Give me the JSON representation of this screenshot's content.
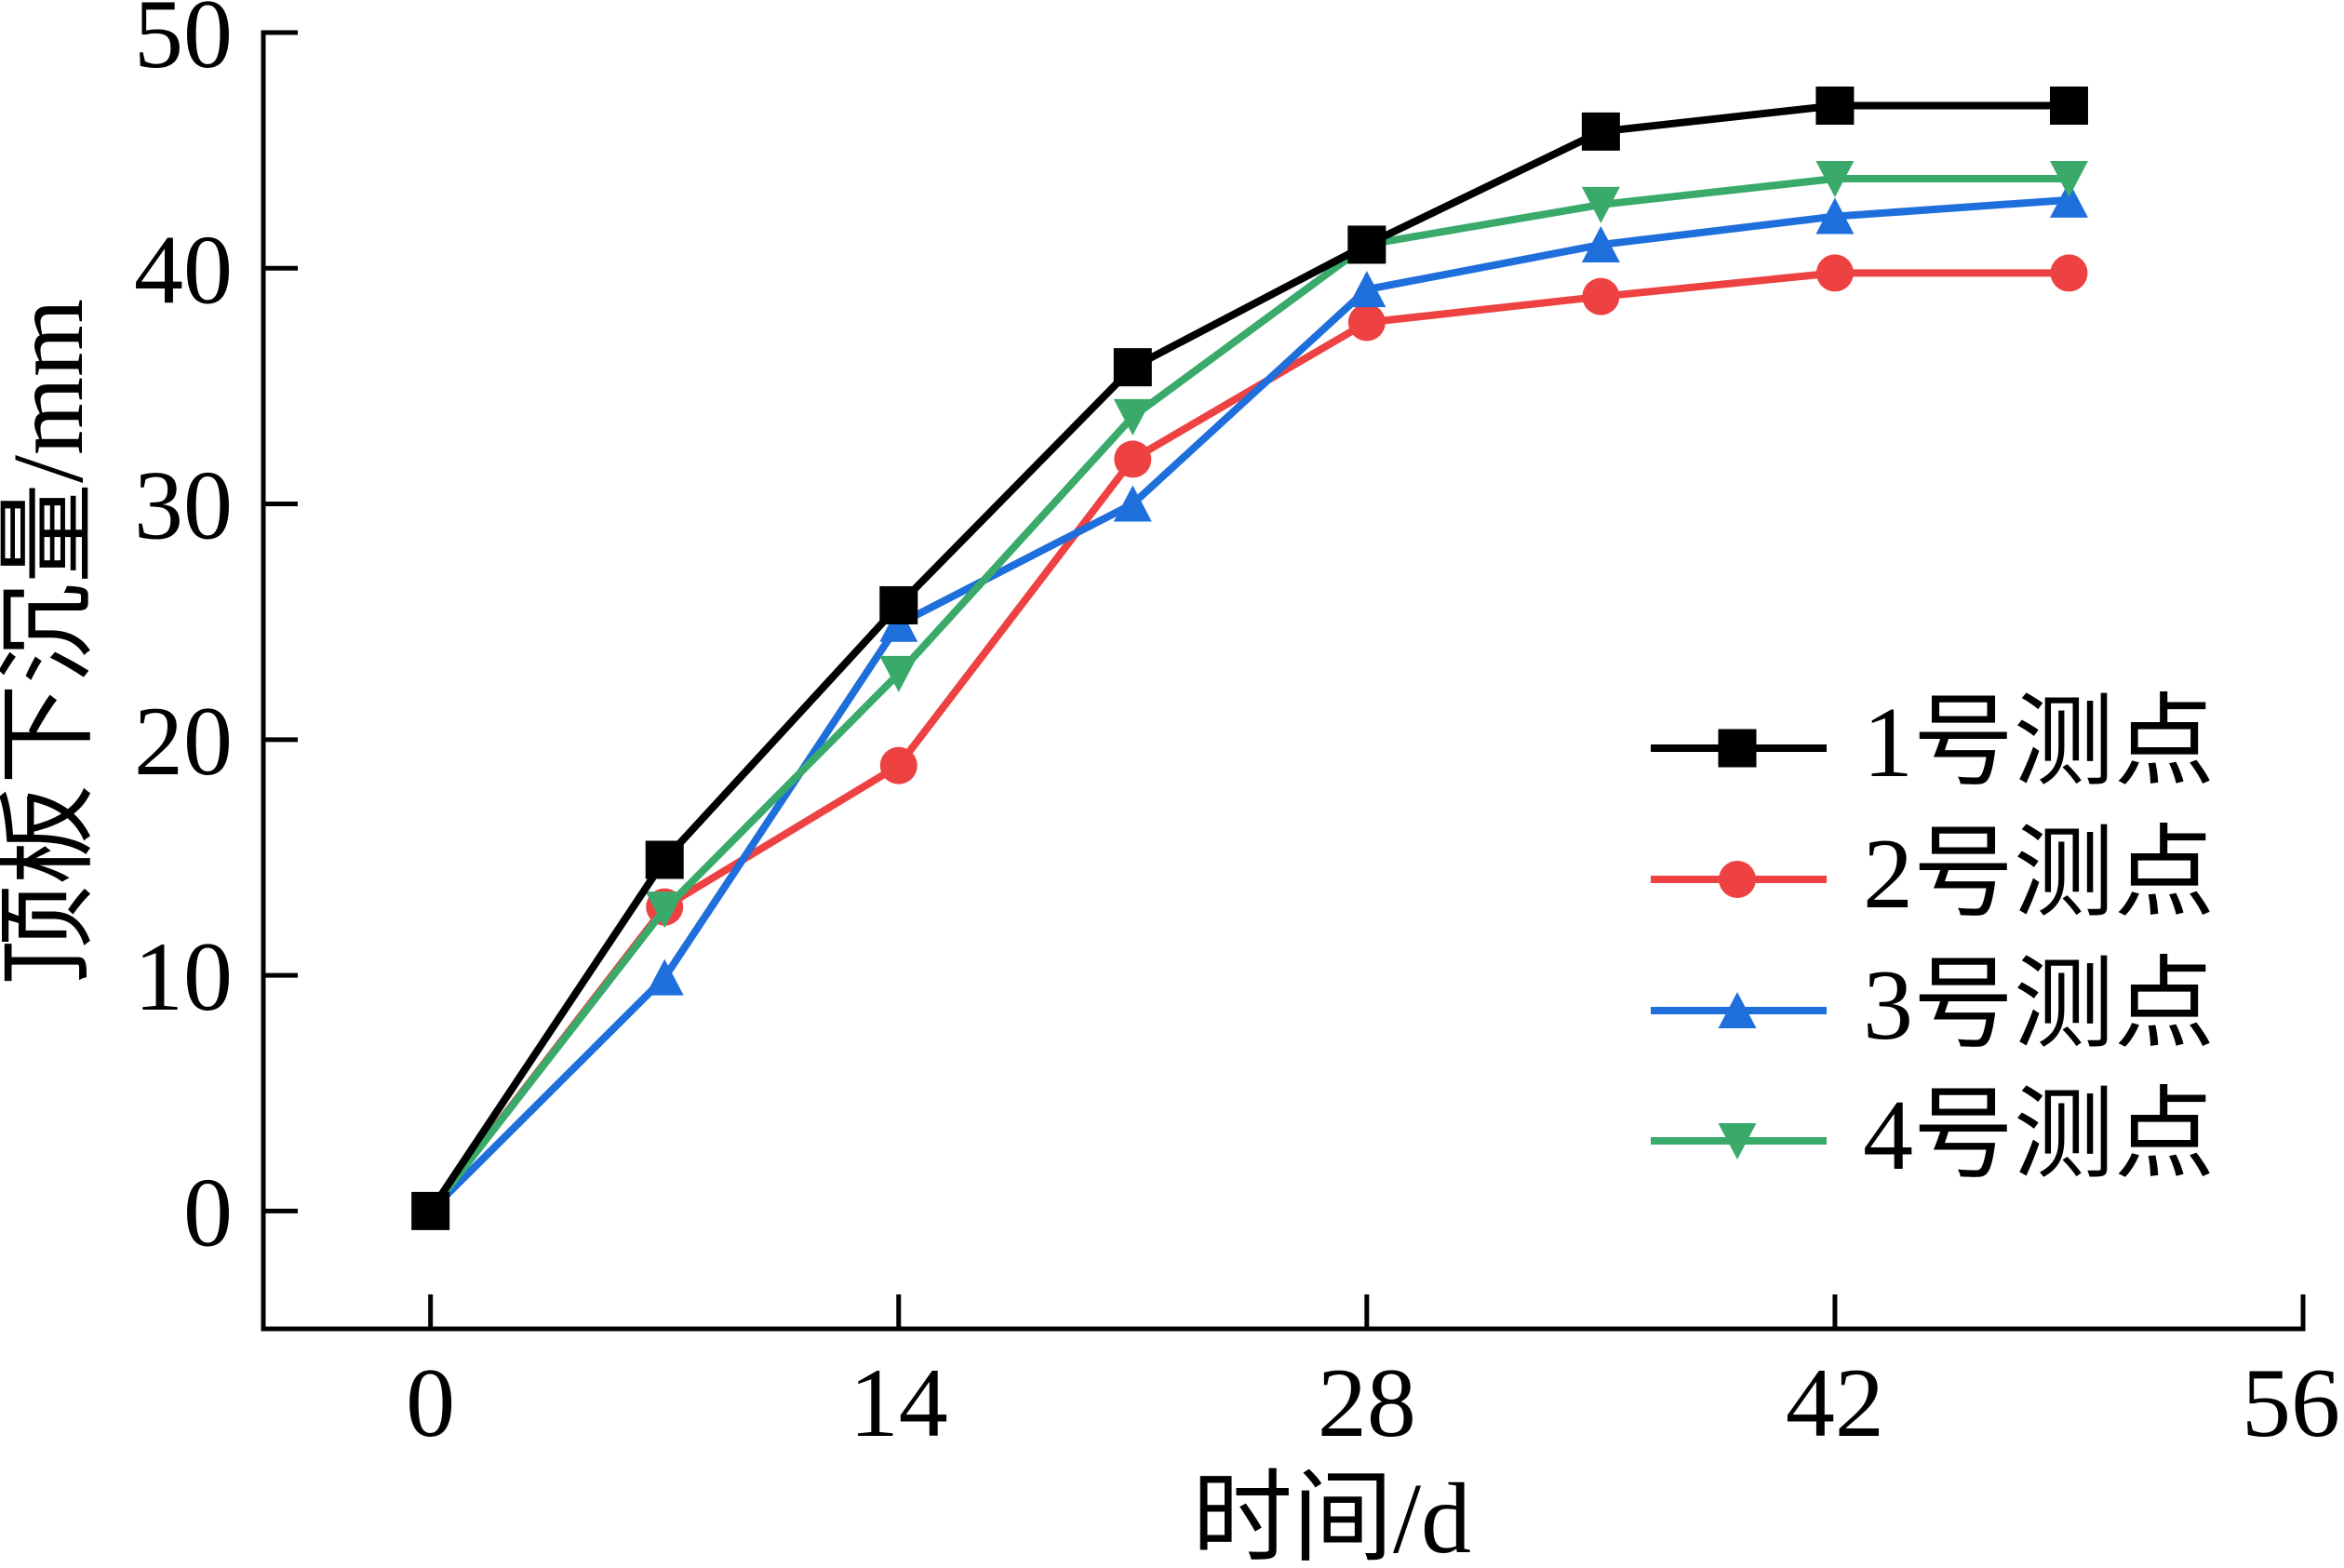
{
  "chart_data": {
    "type": "line",
    "title": "",
    "xlabel": "时间/d",
    "ylabel": "顶板下沉量/mm",
    "xlim": [
      -5,
      56
    ],
    "ylim": [
      -5,
      50
    ],
    "xticks": [
      0,
      14,
      28,
      42,
      56
    ],
    "xtick_labels": [
      "0",
      "14",
      "28",
      "42",
      "56"
    ],
    "yticks": [
      0,
      10,
      20,
      30,
      40,
      50
    ],
    "ytick_labels": [
      "0",
      "10",
      "20",
      "30",
      "40",
      "50"
    ],
    "grid": false,
    "legend_position": "right",
    "x": [
      0,
      7,
      14,
      21,
      28,
      35,
      42,
      49
    ],
    "series": [
      {
        "name": "1号测点",
        "color": "#000000",
        "marker": "square",
        "values": [
          0,
          14.9,
          25.7,
          35.8,
          41.0,
          45.8,
          46.9,
          46.9
        ]
      },
      {
        "name": "2号测点",
        "color": "#EE4242",
        "marker": "circle",
        "values": [
          0,
          12.9,
          18.9,
          31.9,
          37.7,
          38.8,
          39.8,
          39.8
        ]
      },
      {
        "name": "3号测点",
        "color": "#1E6EDC",
        "marker": "triangle-up",
        "values": [
          0,
          9.9,
          24.9,
          30.0,
          39.1,
          41.0,
          42.2,
          42.9
        ]
      },
      {
        "name": "4号测点",
        "color": "#39AA6A",
        "marker": "triangle-down",
        "values": [
          0,
          12.8,
          22.8,
          33.7,
          41.0,
          42.7,
          43.8,
          43.8
        ]
      }
    ]
  }
}
